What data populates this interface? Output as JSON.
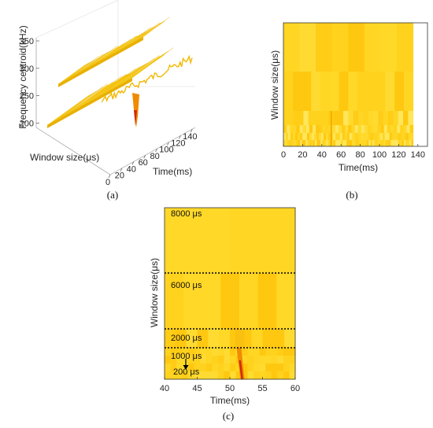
{
  "panels": {
    "a_label": "(a)",
    "b_label": "(b)",
    "c_label": "(c)"
  },
  "colors": {
    "base": "#FFD21E",
    "light": "#FFE040",
    "dark": "#F0A800",
    "orange": "#F08A00",
    "red": "#D22A00",
    "surface_top": "#FFCC14",
    "surface_shadow": "#E8B000"
  },
  "chart_data": [
    {
      "panel": "a",
      "type": "area",
      "projection": "3d-surface",
      "zlabel": "Frequency centroid(kHz)",
      "ylabel": "Window size(μs)",
      "xlabel": "Time(ms)",
      "z_ticks": [
        "200",
        "250",
        "300",
        "350"
      ],
      "x_ticks": [
        "0",
        "20",
        "40",
        "60",
        "80",
        "100",
        "120",
        "140"
      ],
      "zlim": [
        195,
        350
      ],
      "xlim": [
        0,
        145
      ],
      "surfaces": [
        {
          "window": "large",
          "level": 300
        },
        {
          "window": "small",
          "level": 205
        }
      ]
    },
    {
      "panel": "b",
      "type": "heatmap",
      "xlabel": "Time(ms)",
      "ylabel": "Window size(μs)",
      "x_ticks": [
        "0",
        "20",
        "40",
        "60",
        "80",
        "100",
        "120",
        "140"
      ],
      "xlim": [
        0,
        150
      ],
      "data_extent": [
        0,
        135
      ],
      "grid": false
    },
    {
      "panel": "c",
      "type": "heatmap",
      "xlabel": "Time(ms)",
      "ylabel": "Window size(μs)",
      "x_ticks": [
        "40",
        "45",
        "50",
        "55",
        "60"
      ],
      "xlim": [
        40,
        60
      ],
      "dotted_separators": [
        "6000",
        "2000",
        "1000"
      ],
      "bands": [
        "8000 μs",
        "6000 μs",
        "2000 μs",
        "1000 μs",
        "200 μs"
      ],
      "event_time_ms": 51.5,
      "arrow": {
        "from": "1000 μs",
        "to": "200 μs"
      }
    }
  ]
}
